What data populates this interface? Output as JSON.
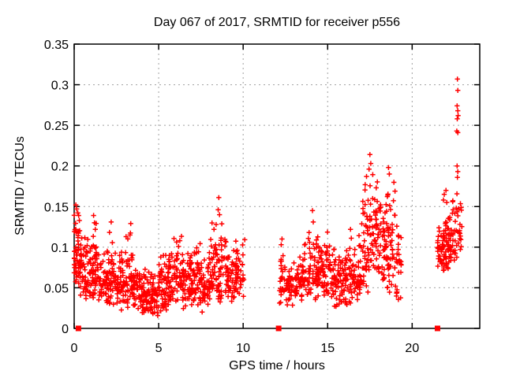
{
  "page": {
    "background": "#ffffff"
  },
  "chart_data": {
    "type": "scatter",
    "title": "Day 067 of 2017, SRMTID for receiver p556",
    "xlabel": "GPS time / hours",
    "ylabel": "SRMTID / TECUs",
    "xlim": [
      0,
      24
    ],
    "ylim": [
      0,
      0.35
    ],
    "xticks": {
      "values": [
        0,
        5,
        10,
        15,
        20
      ],
      "labels": [
        "0",
        "5",
        "10",
        "15",
        "20"
      ]
    },
    "yticks": {
      "values": [
        0,
        0.05,
        0.1,
        0.15,
        0.2,
        0.25,
        0.3,
        0.35
      ],
      "labels": [
        "0",
        "0.05",
        "0.1",
        "0.15",
        "0.2",
        "0.25",
        "0.3",
        "0.35"
      ]
    },
    "grid": true,
    "legend": "none",
    "colors": {
      "points": "#ff0000",
      "grid": "#a0a0a0",
      "frame": "#000000",
      "text": "#000000",
      "background": "#ffffff"
    },
    "data_gaps_hours": [
      [
        10.1,
        12.15
      ],
      [
        19.4,
        21.5
      ]
    ],
    "series": [
      {
        "name": "SRMTID",
        "marker": "plus",
        "color": "#ff0000",
        "density_bins": [
          {
            "x0": 0.0,
            "x1": 0.35,
            "n": 50,
            "ymin": 0.04,
            "ymax": 0.155,
            "mode": 0.085
          },
          {
            "x0": 0.35,
            "x1": 0.7,
            "n": 38,
            "ymin": 0.035,
            "ymax": 0.125,
            "mode": 0.065
          },
          {
            "x0": 0.7,
            "x1": 1.1,
            "n": 40,
            "ymin": 0.03,
            "ymax": 0.12,
            "mode": 0.06
          },
          {
            "x0": 1.1,
            "x1": 1.5,
            "n": 42,
            "ymin": 0.03,
            "ymax": 0.14,
            "mode": 0.06
          },
          {
            "x0": 1.5,
            "x1": 2.0,
            "n": 45,
            "ymin": 0.025,
            "ymax": 0.105,
            "mode": 0.055
          },
          {
            "x0": 2.0,
            "x1": 2.5,
            "n": 45,
            "ymin": 0.025,
            "ymax": 0.125,
            "mode": 0.05
          },
          {
            "x0": 2.5,
            "x1": 3.0,
            "n": 45,
            "ymin": 0.02,
            "ymax": 0.1,
            "mode": 0.048
          },
          {
            "x0": 3.0,
            "x1": 3.5,
            "n": 45,
            "ymin": 0.018,
            "ymax": 0.12,
            "mode": 0.045
          },
          {
            "x0": 3.5,
            "x1": 4.0,
            "n": 45,
            "ymin": 0.015,
            "ymax": 0.09,
            "mode": 0.04
          },
          {
            "x0": 4.0,
            "x1": 4.5,
            "n": 45,
            "ymin": 0.01,
            "ymax": 0.08,
            "mode": 0.034
          },
          {
            "x0": 4.5,
            "x1": 5.0,
            "n": 45,
            "ymin": 0.008,
            "ymax": 0.075,
            "mode": 0.03
          },
          {
            "x0": 5.0,
            "x1": 5.5,
            "n": 45,
            "ymin": 0.015,
            "ymax": 0.1,
            "mode": 0.04
          },
          {
            "x0": 5.5,
            "x1": 6.0,
            "n": 45,
            "ymin": 0.02,
            "ymax": 0.115,
            "mode": 0.045
          },
          {
            "x0": 6.0,
            "x1": 6.5,
            "n": 45,
            "ymin": 0.02,
            "ymax": 0.12,
            "mode": 0.05
          },
          {
            "x0": 6.5,
            "x1": 7.0,
            "n": 45,
            "ymin": 0.025,
            "ymax": 0.105,
            "mode": 0.05
          },
          {
            "x0": 7.0,
            "x1": 7.5,
            "n": 45,
            "ymin": 0.025,
            "ymax": 0.12,
            "mode": 0.055
          },
          {
            "x0": 7.5,
            "x1": 8.0,
            "n": 42,
            "ymin": 0.02,
            "ymax": 0.1,
            "mode": 0.05
          },
          {
            "x0": 8.0,
            "x1": 8.5,
            "n": 42,
            "ymin": 0.025,
            "ymax": 0.14,
            "mode": 0.055
          },
          {
            "x0": 8.5,
            "x1": 9.0,
            "n": 42,
            "ymin": 0.025,
            "ymax": 0.155,
            "mode": 0.06
          },
          {
            "x0": 9.0,
            "x1": 9.5,
            "n": 40,
            "ymin": 0.03,
            "ymax": 0.1,
            "mode": 0.055
          },
          {
            "x0": 9.5,
            "x1": 10.1,
            "n": 45,
            "ymin": 0.03,
            "ymax": 0.115,
            "mode": 0.06
          },
          {
            "x0": 12.15,
            "x1": 12.5,
            "n": 26,
            "ymin": 0.03,
            "ymax": 0.105,
            "mode": 0.055
          },
          {
            "x0": 12.5,
            "x1": 13.0,
            "n": 36,
            "ymin": 0.025,
            "ymax": 0.085,
            "mode": 0.05
          },
          {
            "x0": 13.0,
            "x1": 13.5,
            "n": 40,
            "ymin": 0.025,
            "ymax": 0.1,
            "mode": 0.05
          },
          {
            "x0": 13.5,
            "x1": 14.0,
            "n": 40,
            "ymin": 0.03,
            "ymax": 0.12,
            "mode": 0.058
          },
          {
            "x0": 14.0,
            "x1": 14.5,
            "n": 42,
            "ymin": 0.03,
            "ymax": 0.14,
            "mode": 0.065
          },
          {
            "x0": 14.5,
            "x1": 15.0,
            "n": 42,
            "ymin": 0.03,
            "ymax": 0.125,
            "mode": 0.062
          },
          {
            "x0": 15.0,
            "x1": 15.5,
            "n": 40,
            "ymin": 0.025,
            "ymax": 0.11,
            "mode": 0.055
          },
          {
            "x0": 15.5,
            "x1": 16.0,
            "n": 40,
            "ymin": 0.02,
            "ymax": 0.1,
            "mode": 0.05
          },
          {
            "x0": 16.0,
            "x1": 16.5,
            "n": 40,
            "ymin": 0.025,
            "ymax": 0.12,
            "mode": 0.055
          },
          {
            "x0": 16.5,
            "x1": 17.0,
            "n": 42,
            "ymin": 0.03,
            "ymax": 0.13,
            "mode": 0.06
          },
          {
            "x0": 17.0,
            "x1": 17.5,
            "n": 45,
            "ymin": 0.04,
            "ymax": 0.19,
            "mode": 0.09
          },
          {
            "x0": 17.5,
            "x1": 18.0,
            "n": 45,
            "ymin": 0.05,
            "ymax": 0.21,
            "mode": 0.11
          },
          {
            "x0": 18.0,
            "x1": 18.5,
            "n": 45,
            "ymin": 0.05,
            "ymax": 0.185,
            "mode": 0.1
          },
          {
            "x0": 18.5,
            "x1": 19.0,
            "n": 45,
            "ymin": 0.04,
            "ymax": 0.195,
            "mode": 0.095
          },
          {
            "x0": 19.0,
            "x1": 19.4,
            "n": 28,
            "ymin": 0.03,
            "ymax": 0.15,
            "mode": 0.07
          },
          {
            "x0": 21.5,
            "x1": 21.8,
            "n": 28,
            "ymin": 0.06,
            "ymax": 0.135,
            "mode": 0.095
          },
          {
            "x0": 21.8,
            "x1": 22.1,
            "n": 34,
            "ymin": 0.06,
            "ymax": 0.155,
            "mode": 0.1
          },
          {
            "x0": 22.1,
            "x1": 22.4,
            "n": 30,
            "ymin": 0.065,
            "ymax": 0.15,
            "mode": 0.1
          },
          {
            "x0": 22.4,
            "x1": 22.65,
            "n": 18,
            "ymin": 0.07,
            "ymax": 0.16,
            "mode": 0.11
          },
          {
            "x0": 22.65,
            "x1": 22.95,
            "n": 20,
            "ymin": 0.09,
            "ymax": 0.185,
            "mode": 0.13
          }
        ],
        "highlight_points": [
          [
            0.1,
            0.152
          ],
          [
            0.15,
            0.147
          ],
          [
            1.15,
            0.139
          ],
          [
            1.2,
            0.13
          ],
          [
            2.19,
            0.131
          ],
          [
            3.3,
            0.115
          ],
          [
            3.35,
            0.129
          ],
          [
            8.52,
            0.146
          ],
          [
            8.56,
            0.161
          ],
          [
            8.6,
            0.14
          ],
          [
            12.25,
            0.103
          ],
          [
            12.3,
            0.11
          ],
          [
            13.9,
            0.118
          ],
          [
            14.1,
            0.145
          ],
          [
            14.15,
            0.131
          ],
          [
            16.35,
            0.122
          ],
          [
            16.4,
            0.111
          ],
          [
            17.3,
            0.187
          ],
          [
            17.45,
            0.196
          ],
          [
            17.5,
            0.214
          ],
          [
            17.55,
            0.203
          ],
          [
            18.6,
            0.198
          ],
          [
            18.65,
            0.19
          ],
          [
            21.85,
            0.158
          ],
          [
            21.9,
            0.165
          ],
          [
            22.0,
            0.17
          ],
          [
            22.05,
            0.155
          ],
          [
            22.4,
            0.156
          ],
          [
            22.42,
            0.146
          ],
          [
            22.64,
            0.243
          ],
          [
            22.66,
            0.274
          ],
          [
            22.66,
            0.2
          ],
          [
            22.67,
            0.258
          ],
          [
            22.68,
            0.307
          ],
          [
            22.68,
            0.186
          ],
          [
            22.7,
            0.293
          ],
          [
            22.7,
            0.268
          ],
          [
            22.7,
            0.241
          ],
          [
            22.7,
            0.193
          ],
          [
            22.72,
            0.262
          ]
        ]
      },
      {
        "name": "zero-flag-markers",
        "marker": "filled-square",
        "color": "#ff0000",
        "points": [
          [
            0.25,
            0
          ],
          [
            12.1,
            0
          ],
          [
            21.5,
            0
          ]
        ]
      }
    ]
  }
}
